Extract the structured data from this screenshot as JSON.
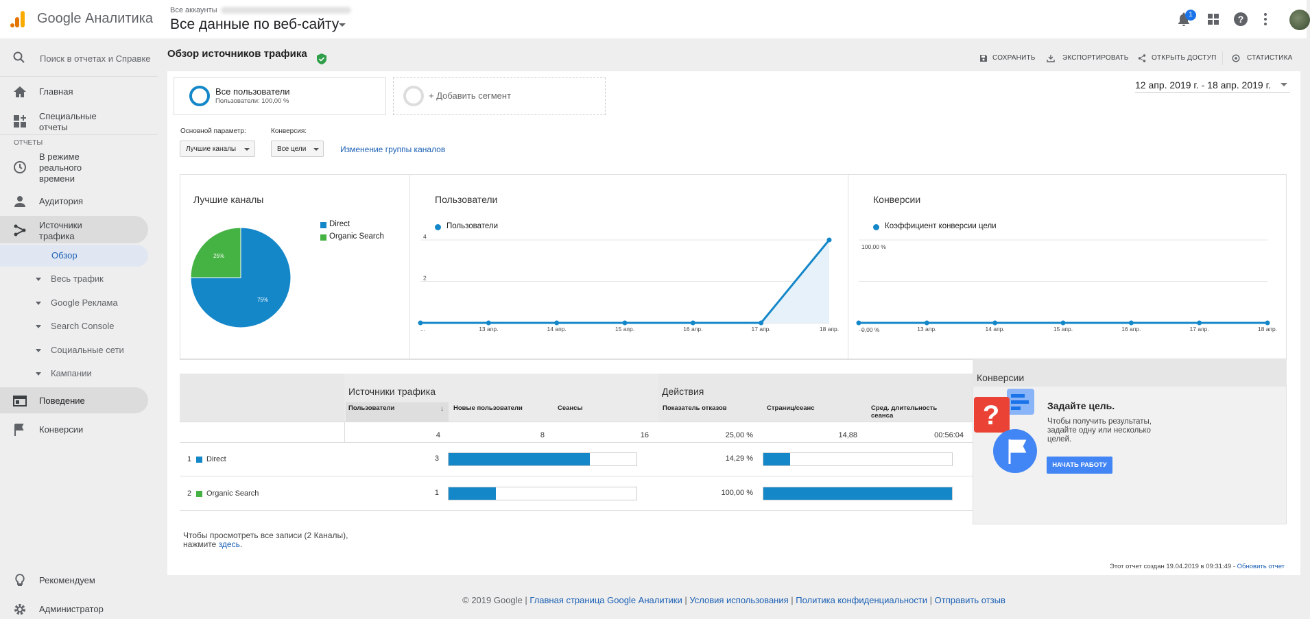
{
  "app": {
    "title": "Google Аналитика"
  },
  "account": {
    "small_label": "Все аккаунты",
    "view_name": "Все данные по веб-сайту"
  },
  "topbar": {
    "notifications_count": "1"
  },
  "search": {
    "placeholder": "Поиск в отчетах и Справке"
  },
  "sidebar": {
    "home": "Главная",
    "custom_reports": "Специальные отчеты",
    "section_reports": "ОТЧЕТЫ",
    "realtime": "В режиме реального времени",
    "audience": "Аудитория",
    "acquisition": "Источники трафика",
    "overview": "Обзор",
    "all_traffic": "Весь трафик",
    "google_ads": "Google Реклама",
    "search_console": "Search Console",
    "social": "Социальные сети",
    "campaigns": "Кампании",
    "behavior": "Поведение",
    "conversions": "Конверсии",
    "recommend": "Рекомендуем",
    "admin": "Администратор"
  },
  "report": {
    "title": "Обзор источников трафика",
    "actions": {
      "save": "СОХРАНИТЬ",
      "export": "ЭКСПОРТИРОВАТЬ",
      "share": "ОТКРЫТЬ ДОСТУП",
      "stats": "СТАТИСТИКА"
    },
    "segment": {
      "name": "Все пользователи",
      "sub": "Пользователи: 100,00 %",
      "add": "+ Добавить сегмент"
    },
    "date_range": "12 апр. 2019 г. - 18 апр. 2019 г.",
    "primary_dim_label": "Основной параметр:",
    "primary_dim_value": "Лучшие каналы",
    "conversion_label": "Конверсия:",
    "conversion_value": "Все цели",
    "change_channels_link": "Изменение группы каналов"
  },
  "chart_data": [
    {
      "type": "pie",
      "title": "Лучшие каналы",
      "categories": [
        "Direct",
        "Organic Search"
      ],
      "values": [
        75,
        25
      ],
      "labels": [
        "75%",
        "25%"
      ],
      "colors": [
        "#1487c9",
        "#45b343"
      ],
      "legend": "right"
    },
    {
      "type": "area",
      "title": "Пользователи",
      "series": [
        {
          "name": "Пользователи",
          "values": [
            0,
            0,
            0,
            0,
            0,
            0,
            4
          ]
        }
      ],
      "x": [
        "...",
        "13 апр.",
        "14 апр.",
        "15 апр.",
        "16 апр.",
        "17 апр.",
        "18 апр."
      ],
      "yticks": [
        "2",
        "4"
      ],
      "ylim": [
        0,
        4
      ],
      "color": "#1487c9"
    },
    {
      "type": "line",
      "title": "Конверсии",
      "series": [
        {
          "name": "Коэффициент конверсии цели",
          "values": [
            0,
            0,
            0,
            0,
            0,
            0,
            0
          ]
        }
      ],
      "x": [
        "...",
        "13 апр.",
        "14 апр.",
        "15 апр.",
        "16 апр.",
        "17 апр.",
        "18 апр."
      ],
      "yticks": [
        "0,00 %",
        "100,00 %"
      ],
      "ylim": [
        0,
        100
      ],
      "color": "#1487c9"
    }
  ],
  "table": {
    "group_acq": "Источники трафика",
    "group_beh": "Действия",
    "group_conv": "Конверсии",
    "headers": {
      "users": "Пользователи",
      "new_users": "Новые пользователи",
      "sessions": "Сеансы",
      "bounce": "Показатель отказов",
      "pages": "Страниц/сеанс",
      "duration": "Сред. длительность сеанса"
    },
    "totals": {
      "users": "4",
      "new_users": "8",
      "sessions": "16",
      "bounce": "25,00 %",
      "pages": "14,88",
      "duration": "00:56:04"
    },
    "rows": [
      {
        "index": "1",
        "channel": "Direct",
        "color": "#1487c9",
        "users": "3",
        "new_users_frac": 0.75,
        "bounce": "14,29 %",
        "pages_frac": 0.14
      },
      {
        "index": "2",
        "channel": "Organic Search",
        "color": "#45b343",
        "users": "1",
        "new_users_frac": 0.25,
        "bounce": "100,00 %",
        "pages_frac": 1.0
      }
    ],
    "more_note_prefix": "Чтобы просмотреть все записи (2 Каналы), нажмите",
    "more_link": "здесь",
    "more_note_suffix": "."
  },
  "goal": {
    "title": "Задайте цель.",
    "text": "Чтобы получить результаты, задайте одну или несколько целей.",
    "button": "НАЧАТЬ РАБОТУ"
  },
  "generated": {
    "text": "Этот отчет создан 19.04.2019 в 09:31:49 -",
    "link": "Обновить отчет"
  },
  "footer": {
    "copyright": "© 2019 Google |",
    "links": [
      "Главная страница Google Аналитики",
      "Условия использования",
      "Политика конфиденциальности",
      "Отправить отзыв"
    ]
  }
}
